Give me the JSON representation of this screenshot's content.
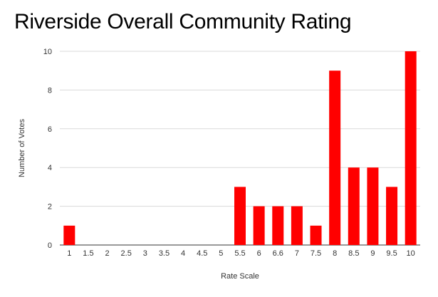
{
  "chart_data": {
    "type": "bar",
    "title": "Riverside Overall Community Rating",
    "xlabel": "Rate Scale",
    "ylabel": "Number of Votes",
    "categories": [
      "1",
      "1.5",
      "2",
      "2.5",
      "3",
      "3.5",
      "4",
      "4.5",
      "5",
      "5.5",
      "6",
      "6.6",
      "7",
      "7.5",
      "8",
      "8.5",
      "9",
      "9.5",
      "10"
    ],
    "values": [
      1,
      0,
      0,
      0,
      0,
      0,
      0,
      0,
      0,
      3,
      2,
      2,
      2,
      1,
      9,
      4,
      4,
      3,
      10
    ],
    "ylim": [
      0,
      10
    ],
    "yticks": [
      0,
      2,
      4,
      6,
      8,
      10
    ],
    "grid": true,
    "legend": "none",
    "bar_color": "#ff0000",
    "grid_color": "#d9d9d9"
  }
}
